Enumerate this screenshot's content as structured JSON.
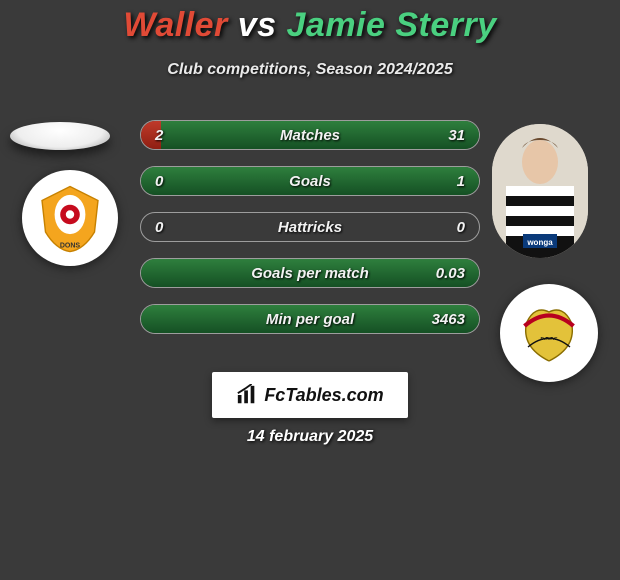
{
  "title": {
    "left": "Waller",
    "vs": "vs",
    "right": "Jamie Sterry"
  },
  "subtitle": "Club competitions, Season 2024/2025",
  "colors": {
    "left_name": "#e04a36",
    "right_name": "#4ad080",
    "left_bar": "#a62c1e",
    "right_bar": "#22823f",
    "background": "#3a3a3a"
  },
  "rows": [
    {
      "label": "Matches",
      "left": "2",
      "right": "31",
      "left_pct": 6,
      "right_pct": 94
    },
    {
      "label": "Goals",
      "left": "0",
      "right": "1",
      "left_pct": 0,
      "right_pct": 100
    },
    {
      "label": "Hattricks",
      "left": "0",
      "right": "0",
      "left_pct": 0,
      "right_pct": 0
    },
    {
      "label": "Goals per match",
      "left": "",
      "right": "0.03",
      "left_pct": 0,
      "right_pct": 100
    },
    {
      "label": "Min per goal",
      "left": "",
      "right": "3463",
      "left_pct": 0,
      "right_pct": 100
    }
  ],
  "footer": {
    "brand": "FcTables.com",
    "date": "14 february 2025"
  },
  "badges": {
    "left": {
      "name": "mk-dons-crest",
      "primary": "#f4a51e",
      "secondary": "#c60b1e"
    },
    "right": {
      "name": "doncaster-crest",
      "primary": "#e3c23a",
      "secondary": "#b8001f"
    }
  }
}
